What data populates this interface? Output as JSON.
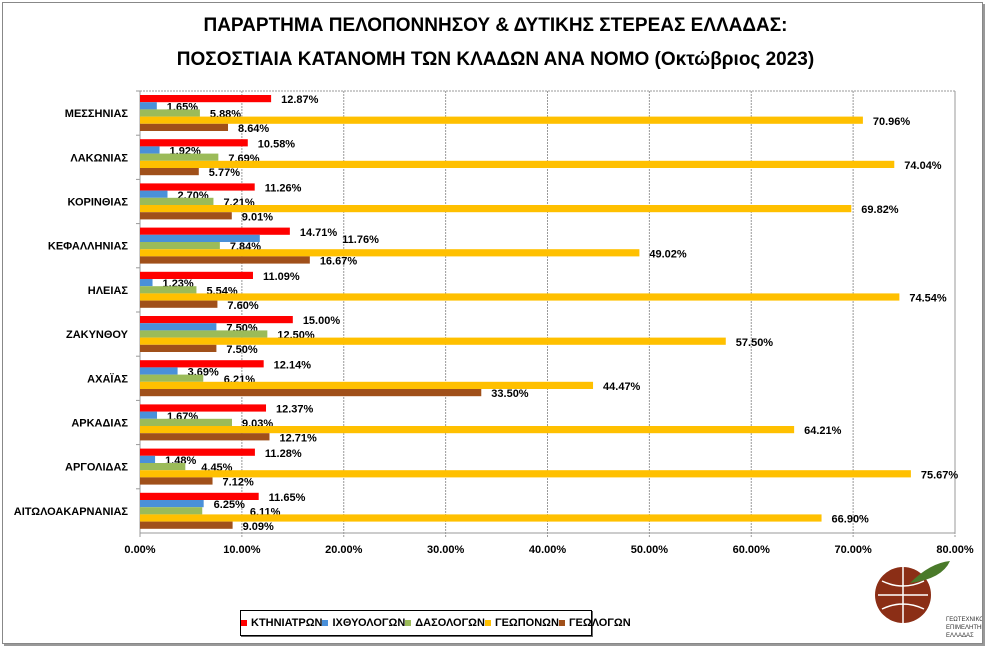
{
  "chart_data": {
    "type": "bar",
    "orientation": "horizontal",
    "title": [
      "ΠΑΡΑΡΤΗΜΑ ΠΕΛΟΠΟΝΝΗΣΟΥ & ΔΥΤΙΚΗΣ ΣΤΕΡΕΑΣ ΕΛΛΑΔΑΣ:",
      "ΠΟΣΟΣΤΙΑΙΑ ΚΑΤΑΝΟΜΗ ΤΩΝ ΚΛΑΔΩΝ ΑΝΑ ΝΟΜΟ (Οκτώβριος 2023)"
    ],
    "categories": [
      "ΜΕΣΣΗΝΙΑΣ",
      "ΛΑΚΩΝΙΑΣ",
      "ΚΟΡΙΝΘΙΑΣ",
      "ΚΕΦΑΛΛΗΝΙΑΣ",
      "ΗΛΕΙΑΣ",
      "ΖΑΚΥΝΘΟΥ",
      "ΑΧΑΪΑΣ",
      "ΑΡΚΑΔΙΑΣ",
      "ΑΡΓΟΛΙΔΑΣ",
      "ΑΙΤΩΛΟΑΚΑΡΝΑΝΙΑΣ"
    ],
    "series": [
      {
        "name": "ΚΤΗΝΙΑΤΡΩΝ",
        "color": "#ff0000",
        "values": [
          12.87,
          10.58,
          11.26,
          14.71,
          11.09,
          15.0,
          12.14,
          12.37,
          11.28,
          11.65
        ]
      },
      {
        "name": "ΙΧΘΥΟΛΟΓΩΝ",
        "color": "#4a90d9",
        "values": [
          1.65,
          1.92,
          2.7,
          11.76,
          1.23,
          7.5,
          3.69,
          1.67,
          1.48,
          6.25
        ]
      },
      {
        "name": "ΔΑΣΟΛΟΓΩΝ",
        "color": "#9bbb59",
        "values": [
          5.88,
          7.69,
          7.21,
          7.84,
          5.54,
          12.5,
          6.21,
          9.03,
          4.45,
          6.11
        ]
      },
      {
        "name": "ΓΕΩΠΟΝΩΝ",
        "color": "#ffc000",
        "values": [
          70.96,
          74.04,
          69.82,
          49.02,
          74.54,
          57.5,
          44.47,
          64.21,
          75.67,
          66.9
        ]
      },
      {
        "name": "ΓΕΩΛΟΓΩΝ",
        "color": "#a0501a",
        "values": [
          8.64,
          5.77,
          9.01,
          16.67,
          7.6,
          7.5,
          33.5,
          12.71,
          7.12,
          9.09
        ]
      }
    ],
    "xlim": [
      0,
      80
    ],
    "xticks": [
      "0.00%",
      "10.00%",
      "20.00%",
      "30.00%",
      "40.00%",
      "50.00%",
      "60.00%",
      "70.00%",
      "80.00%"
    ],
    "grid": true,
    "legend_position": "bottom"
  },
  "logo_text": "ΓΕΩΤΕΧΝΙΚΟ ΕΠΙΜΕΛΗΤΗΡΙΟ ΕΛΛΑΔΑΣ"
}
